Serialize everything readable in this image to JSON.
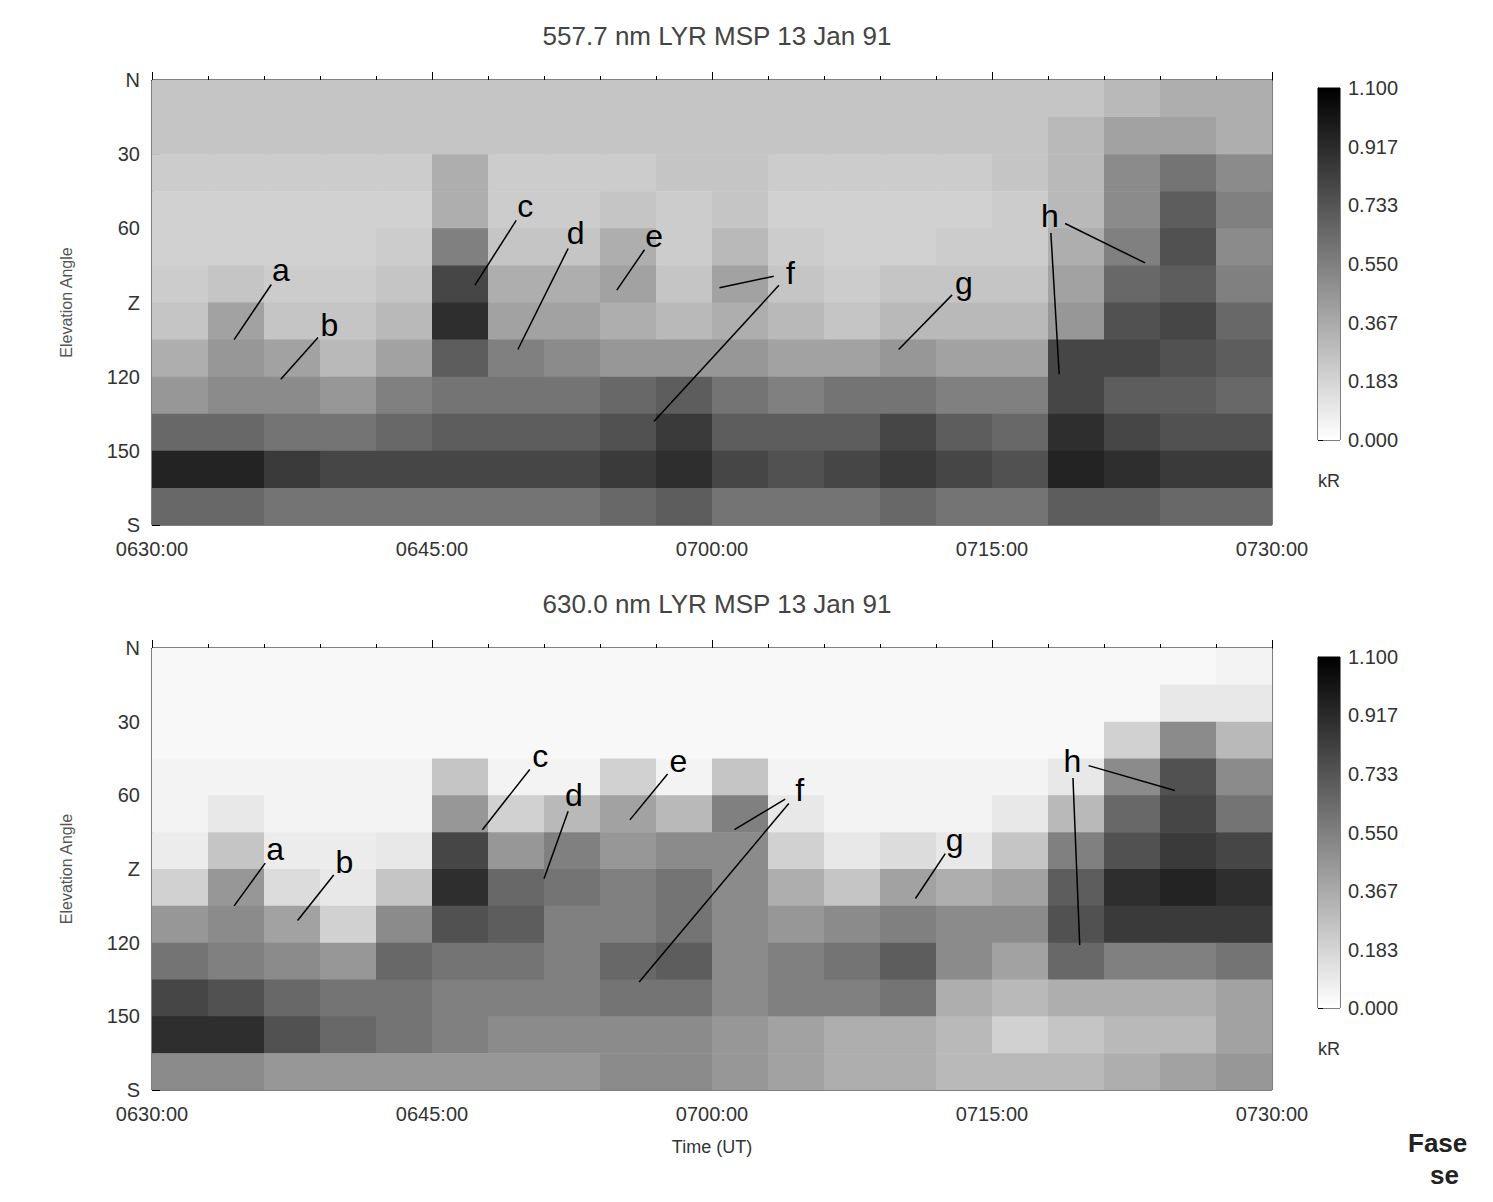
{
  "chart_data": [
    {
      "type": "heatmap",
      "title": "557.7 nm LYR MSP 13 Jan 91",
      "y_label": "Elevation Angle",
      "xlim": [
        390,
        450
      ],
      "xticks": [
        {
          "value": 390,
          "label": "0630:00"
        },
        {
          "value": 405,
          "label": "0645:00"
        },
        {
          "value": 420,
          "label": "0700:00"
        },
        {
          "value": 435,
          "label": "0715:00"
        },
        {
          "value": 450,
          "label": "0730:00"
        }
      ],
      "ylim": [
        0,
        180
      ],
      "yticks": [
        {
          "value": 0,
          "label": "N"
        },
        30,
        60,
        {
          "value": 90,
          "label": "Z"
        },
        120,
        150,
        {
          "value": 180,
          "label": "S"
        }
      ],
      "time_bins": [
        390,
        393,
        396,
        399,
        402,
        405,
        408,
        411,
        414,
        417,
        420,
        423,
        426,
        429,
        432,
        435,
        438,
        441,
        444,
        447,
        450
      ],
      "elevation_bins": [
        0,
        15,
        30,
        45,
        60,
        75,
        90,
        105,
        120,
        135,
        150,
        165,
        180
      ],
      "cells": [
        [
          0.25,
          0.25,
          0.25,
          0.25,
          0.25,
          0.25,
          0.25,
          0.25,
          0.25,
          0.25,
          0.25,
          0.25,
          0.25,
          0.25,
          0.25,
          0.25,
          0.25,
          0.3,
          0.35,
          0.35
        ],
        [
          0.25,
          0.25,
          0.25,
          0.25,
          0.25,
          0.25,
          0.25,
          0.25,
          0.25,
          0.25,
          0.25,
          0.25,
          0.25,
          0.25,
          0.25,
          0.25,
          0.3,
          0.4,
          0.4,
          0.35
        ],
        [
          0.22,
          0.22,
          0.22,
          0.22,
          0.22,
          0.35,
          0.22,
          0.22,
          0.22,
          0.25,
          0.25,
          0.22,
          0.22,
          0.22,
          0.22,
          0.25,
          0.3,
          0.5,
          0.6,
          0.5
        ],
        [
          0.2,
          0.2,
          0.2,
          0.2,
          0.2,
          0.35,
          0.22,
          0.22,
          0.25,
          0.22,
          0.25,
          0.2,
          0.2,
          0.2,
          0.2,
          0.22,
          0.3,
          0.5,
          0.7,
          0.55
        ],
        [
          0.2,
          0.2,
          0.2,
          0.2,
          0.22,
          0.55,
          0.25,
          0.25,
          0.35,
          0.22,
          0.3,
          0.22,
          0.2,
          0.2,
          0.22,
          0.22,
          0.35,
          0.55,
          0.75,
          0.5
        ],
        [
          0.22,
          0.25,
          0.22,
          0.22,
          0.25,
          0.8,
          0.35,
          0.35,
          0.4,
          0.25,
          0.4,
          0.25,
          0.22,
          0.25,
          0.25,
          0.25,
          0.4,
          0.65,
          0.7,
          0.55
        ],
        [
          0.25,
          0.4,
          0.25,
          0.25,
          0.3,
          0.9,
          0.4,
          0.4,
          0.35,
          0.3,
          0.35,
          0.3,
          0.25,
          0.3,
          0.3,
          0.3,
          0.45,
          0.75,
          0.8,
          0.65
        ],
        [
          0.35,
          0.45,
          0.4,
          0.3,
          0.4,
          0.7,
          0.55,
          0.5,
          0.45,
          0.45,
          0.45,
          0.4,
          0.4,
          0.45,
          0.4,
          0.4,
          0.8,
          0.8,
          0.75,
          0.7
        ],
        [
          0.45,
          0.5,
          0.5,
          0.45,
          0.55,
          0.6,
          0.6,
          0.6,
          0.65,
          0.7,
          0.6,
          0.55,
          0.6,
          0.6,
          0.55,
          0.55,
          0.8,
          0.7,
          0.7,
          0.65
        ],
        [
          0.65,
          0.65,
          0.6,
          0.6,
          0.65,
          0.7,
          0.7,
          0.7,
          0.75,
          0.85,
          0.7,
          0.7,
          0.7,
          0.8,
          0.7,
          0.65,
          0.9,
          0.8,
          0.75,
          0.75
        ],
        [
          0.95,
          0.95,
          0.85,
          0.8,
          0.8,
          0.8,
          0.8,
          0.8,
          0.85,
          0.9,
          0.8,
          0.75,
          0.8,
          0.85,
          0.8,
          0.75,
          0.95,
          0.9,
          0.85,
          0.85
        ],
        [
          0.65,
          0.65,
          0.6,
          0.6,
          0.6,
          0.6,
          0.6,
          0.6,
          0.65,
          0.7,
          0.6,
          0.6,
          0.6,
          0.65,
          0.6,
          0.6,
          0.7,
          0.7,
          0.65,
          0.65
        ]
      ],
      "colorbar": {
        "range": [
          0,
          1.1
        ],
        "ticks": [
          {
            "value": 0,
            "label": "0.000"
          },
          {
            "value": 0.183,
            "label": "0.183"
          },
          {
            "value": 0.367,
            "label": "0.367"
          },
          {
            "value": 0.55,
            "label": "0.550"
          },
          {
            "value": 0.733,
            "label": "0.733"
          },
          {
            "value": 0.917,
            "label": "0.917"
          },
          {
            "value": 1.1,
            "label": "1.100"
          }
        ],
        "label": "kR"
      },
      "annotations": [
        {
          "text": "a",
          "x": 396.9,
          "y": 77,
          "targets": [
            [
              394.4,
              105
            ]
          ]
        },
        {
          "text": "b",
          "x": 399.5,
          "y": 99,
          "targets": [
            [
              396.9,
              121
            ]
          ]
        },
        {
          "text": "c",
          "x": 410,
          "y": 51,
          "targets": [
            [
              407.3,
              83
            ]
          ]
        },
        {
          "text": "d",
          "x": 412.7,
          "y": 62,
          "targets": [
            [
              409.6,
              109
            ]
          ]
        },
        {
          "text": "e",
          "x": 416.9,
          "y": 63,
          "targets": [
            [
              414.9,
              85
            ]
          ]
        },
        {
          "text": "f",
          "x": 424.2,
          "y": 78,
          "targets": [
            [
              420.4,
              84
            ],
            [
              416.9,
              138
            ]
          ]
        },
        {
          "text": "g",
          "x": 433.5,
          "y": 82,
          "targets": [
            [
              430,
              109
            ]
          ]
        },
        {
          "text": "h",
          "x": 438.1,
          "y": 55,
          "targets": [
            [
              443.2,
              74
            ],
            [
              438.6,
              119
            ]
          ]
        }
      ]
    },
    {
      "type": "heatmap",
      "title": "630.0 nm LYR MSP 13 Jan 91",
      "x_label": "Time (UT)",
      "y_label": "Elevation Angle",
      "xlim": [
        390,
        450
      ],
      "xticks": [
        {
          "value": 390,
          "label": "0630:00"
        },
        {
          "value": 405,
          "label": "0645:00"
        },
        {
          "value": 420,
          "label": "0700:00"
        },
        {
          "value": 435,
          "label": "0715:00"
        },
        {
          "value": 450,
          "label": "0730:00"
        }
      ],
      "ylim": [
        0,
        180
      ],
      "yticks": [
        {
          "value": 0,
          "label": "N"
        },
        30,
        60,
        {
          "value": 90,
          "label": "Z"
        },
        120,
        150,
        {
          "value": 180,
          "label": "S"
        }
      ],
      "time_bins": [
        390,
        393,
        396,
        399,
        402,
        405,
        408,
        411,
        414,
        417,
        420,
        423,
        426,
        429,
        432,
        435,
        438,
        441,
        444,
        447,
        450
      ],
      "elevation_bins": [
        0,
        15,
        30,
        45,
        60,
        75,
        90,
        105,
        120,
        135,
        150,
        165,
        180
      ],
      "cells": [
        [
          0.03,
          0.03,
          0.03,
          0.03,
          0.03,
          0.03,
          0.03,
          0.03,
          0.03,
          0.03,
          0.03,
          0.03,
          0.03,
          0.03,
          0.03,
          0.03,
          0.03,
          0.03,
          0.03,
          0.05
        ],
        [
          0.03,
          0.03,
          0.03,
          0.03,
          0.03,
          0.03,
          0.03,
          0.03,
          0.03,
          0.03,
          0.03,
          0.03,
          0.03,
          0.03,
          0.03,
          0.03,
          0.03,
          0.03,
          0.1,
          0.1
        ],
        [
          0.03,
          0.03,
          0.03,
          0.03,
          0.03,
          0.03,
          0.03,
          0.03,
          0.03,
          0.03,
          0.03,
          0.03,
          0.03,
          0.03,
          0.03,
          0.03,
          0.03,
          0.2,
          0.5,
          0.3
        ],
        [
          0.05,
          0.05,
          0.05,
          0.05,
          0.05,
          0.25,
          0.05,
          0.05,
          0.2,
          0.05,
          0.25,
          0.05,
          0.05,
          0.05,
          0.05,
          0.05,
          0.1,
          0.5,
          0.75,
          0.5
        ],
        [
          0.05,
          0.1,
          0.05,
          0.05,
          0.05,
          0.45,
          0.2,
          0.3,
          0.4,
          0.3,
          0.55,
          0.1,
          0.05,
          0.05,
          0.05,
          0.1,
          0.3,
          0.65,
          0.8,
          0.6
        ],
        [
          0.08,
          0.25,
          0.08,
          0.08,
          0.1,
          0.8,
          0.45,
          0.55,
          0.45,
          0.5,
          0.5,
          0.2,
          0.1,
          0.15,
          0.1,
          0.25,
          0.55,
          0.75,
          0.85,
          0.8
        ],
        [
          0.2,
          0.45,
          0.15,
          0.1,
          0.25,
          0.9,
          0.65,
          0.6,
          0.55,
          0.6,
          0.5,
          0.35,
          0.25,
          0.4,
          0.35,
          0.4,
          0.7,
          0.9,
          0.95,
          0.9
        ],
        [
          0.45,
          0.5,
          0.4,
          0.2,
          0.5,
          0.75,
          0.7,
          0.55,
          0.55,
          0.6,
          0.5,
          0.45,
          0.5,
          0.55,
          0.5,
          0.5,
          0.75,
          0.85,
          0.85,
          0.85
        ],
        [
          0.6,
          0.55,
          0.5,
          0.45,
          0.65,
          0.6,
          0.6,
          0.55,
          0.65,
          0.7,
          0.5,
          0.55,
          0.6,
          0.7,
          0.5,
          0.4,
          0.65,
          0.55,
          0.55,
          0.6
        ],
        [
          0.8,
          0.75,
          0.65,
          0.6,
          0.6,
          0.55,
          0.55,
          0.55,
          0.6,
          0.6,
          0.5,
          0.55,
          0.55,
          0.6,
          0.35,
          0.3,
          0.35,
          0.35,
          0.35,
          0.4
        ],
        [
          0.9,
          0.9,
          0.75,
          0.65,
          0.6,
          0.55,
          0.5,
          0.5,
          0.5,
          0.5,
          0.45,
          0.4,
          0.35,
          0.35,
          0.3,
          0.2,
          0.25,
          0.3,
          0.3,
          0.4
        ],
        [
          0.5,
          0.5,
          0.45,
          0.45,
          0.45,
          0.45,
          0.45,
          0.45,
          0.5,
          0.5,
          0.45,
          0.4,
          0.35,
          0.35,
          0.3,
          0.3,
          0.3,
          0.35,
          0.4,
          0.45
        ]
      ],
      "colorbar": {
        "range": [
          0,
          1.1
        ],
        "ticks": [
          {
            "value": 0,
            "label": "0.000"
          },
          {
            "value": 0.183,
            "label": "0.183"
          },
          {
            "value": 0.367,
            "label": "0.367"
          },
          {
            "value": 0.55,
            "label": "0.550"
          },
          {
            "value": 0.733,
            "label": "0.733"
          },
          {
            "value": 0.917,
            "label": "0.917"
          },
          {
            "value": 1.1,
            "label": "1.100"
          }
        ],
        "label": "kR"
      },
      "annotations": [
        {
          "text": "a",
          "x": 396.6,
          "y": 82,
          "targets": [
            [
              394.4,
              105
            ]
          ]
        },
        {
          "text": "b",
          "x": 400.3,
          "y": 87,
          "targets": [
            [
              397.8,
              111
            ]
          ]
        },
        {
          "text": "c",
          "x": 410.8,
          "y": 44,
          "targets": [
            [
              407.7,
              74
            ]
          ]
        },
        {
          "text": "d",
          "x": 412.6,
          "y": 60,
          "targets": [
            [
              411,
              94
            ]
          ]
        },
        {
          "text": "e",
          "x": 418.2,
          "y": 46,
          "targets": [
            [
              415.6,
              70
            ]
          ]
        },
        {
          "text": "f",
          "x": 424.7,
          "y": 58,
          "targets": [
            [
              421.2,
              74
            ],
            [
              416.1,
              136
            ]
          ]
        },
        {
          "text": "g",
          "x": 433,
          "y": 78,
          "targets": [
            [
              430.9,
              102
            ]
          ]
        },
        {
          "text": "h",
          "x": 439.3,
          "y": 46,
          "targets": [
            [
              444.8,
              58
            ],
            [
              439.7,
              121
            ]
          ]
        }
      ]
    }
  ],
  "footnote": [
    "Fase",
    "se"
  ]
}
